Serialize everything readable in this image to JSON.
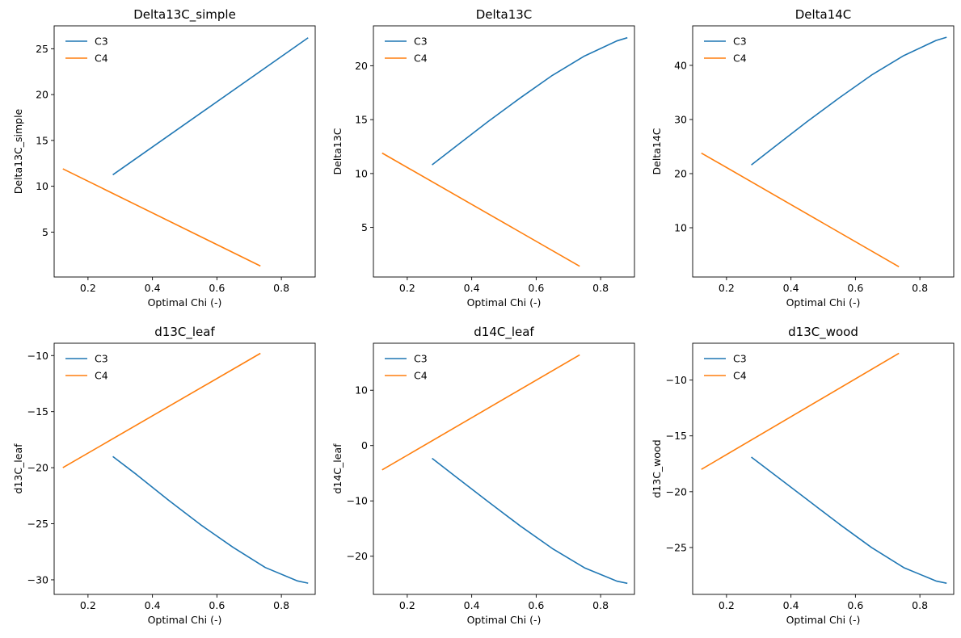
{
  "figure": {
    "legend_location": "upper-left",
    "grid": false,
    "series_colors": {
      "C3": "#1f77b4",
      "C4": "#ff7f0e"
    }
  },
  "chart_data": [
    {
      "type": "line",
      "title": "Delta13C_simple",
      "xlabel": "Optimal Chi (-)",
      "ylabel": "Delta13C_simple",
      "xlim": [
        0.095,
        0.905
      ],
      "ylim": [
        0.1,
        27.5
      ],
      "xticks": [
        0.2,
        0.4,
        0.6,
        0.8
      ],
      "xtick_labels": [
        "0.2",
        "0.4",
        "0.6",
        "0.8"
      ],
      "yticks": [
        5,
        10,
        15,
        20,
        25
      ],
      "ytick_labels": [
        "5",
        "10",
        "15",
        "20",
        "25"
      ],
      "series": [
        {
          "name": "C3",
          "color": "#1f77b4",
          "x": [
            0.277,
            0.883
          ],
          "y": [
            11.25,
            26.2
          ]
        },
        {
          "name": "C4",
          "color": "#ff7f0e",
          "x": [
            0.122,
            0.735
          ],
          "y": [
            11.9,
            1.3
          ]
        }
      ]
    },
    {
      "type": "line",
      "title": "Delta13C",
      "xlabel": "Optimal Chi (-)",
      "ylabel": "Delta13C",
      "xlim": [
        0.095,
        0.905
      ],
      "ylim": [
        0.4,
        23.7
      ],
      "xticks": [
        0.2,
        0.4,
        0.6,
        0.8
      ],
      "xtick_labels": [
        "0.2",
        "0.4",
        "0.6",
        "0.8"
      ],
      "yticks": [
        5,
        10,
        15,
        20
      ],
      "ytick_labels": [
        "5",
        "10",
        "15",
        "20"
      ],
      "series": [
        {
          "name": "C3",
          "color": "#1f77b4",
          "x": [
            0.277,
            0.35,
            0.45,
            0.55,
            0.65,
            0.75,
            0.85,
            0.883
          ],
          "y": [
            10.8,
            12.5,
            14.8,
            17.0,
            19.1,
            20.9,
            22.3,
            22.6
          ]
        },
        {
          "name": "C4",
          "color": "#ff7f0e",
          "x": [
            0.122,
            0.735
          ],
          "y": [
            11.9,
            1.4
          ]
        }
      ]
    },
    {
      "type": "line",
      "title": "Delta14C",
      "xlabel": "Optimal Chi (-)",
      "ylabel": "Delta14C",
      "xlim": [
        0.095,
        0.905
      ],
      "ylim": [
        0.9,
        47.3
      ],
      "xticks": [
        0.2,
        0.4,
        0.6,
        0.8
      ],
      "xtick_labels": [
        "0.2",
        "0.4",
        "0.6",
        "0.8"
      ],
      "yticks": [
        10,
        20,
        30,
        40
      ],
      "ytick_labels": [
        "10",
        "20",
        "30",
        "40"
      ],
      "series": [
        {
          "name": "C3",
          "color": "#1f77b4",
          "x": [
            0.277,
            0.35,
            0.45,
            0.55,
            0.65,
            0.75,
            0.85,
            0.883
          ],
          "y": [
            21.6,
            25.0,
            29.6,
            34.0,
            38.2,
            41.8,
            44.6,
            45.2
          ]
        },
        {
          "name": "C4",
          "color": "#ff7f0e",
          "x": [
            0.122,
            0.735
          ],
          "y": [
            23.8,
            2.8
          ]
        }
      ]
    },
    {
      "type": "line",
      "title": "d13C_leaf",
      "xlabel": "Optimal Chi (-)",
      "ylabel": "d13C_leaf",
      "xlim": [
        0.095,
        0.905
      ],
      "ylim": [
        -31.3,
        -8.9
      ],
      "xticks": [
        0.2,
        0.4,
        0.6,
        0.8
      ],
      "xtick_labels": [
        "0.2",
        "0.4",
        "0.6",
        "0.8"
      ],
      "yticks": [
        -30,
        -25,
        -20,
        -15,
        -10
      ],
      "ytick_labels": [
        "−30",
        "−25",
        "−20",
        "−15",
        "−10"
      ],
      "series": [
        {
          "name": "C3",
          "color": "#1f77b4",
          "x": [
            0.277,
            0.35,
            0.45,
            0.55,
            0.65,
            0.75,
            0.85,
            0.883
          ],
          "y": [
            -19.0,
            -20.6,
            -22.9,
            -25.1,
            -27.1,
            -28.9,
            -30.1,
            -30.3
          ]
        },
        {
          "name": "C4",
          "color": "#ff7f0e",
          "x": [
            0.122,
            0.735
          ],
          "y": [
            -20.0,
            -9.8
          ]
        }
      ]
    },
    {
      "type": "line",
      "title": "d14C_leaf",
      "xlabel": "Optimal Chi (-)",
      "ylabel": "d14C_leaf",
      "xlim": [
        0.095,
        0.905
      ],
      "ylim": [
        -26.9,
        18.5
      ],
      "xticks": [
        0.2,
        0.4,
        0.6,
        0.8
      ],
      "xtick_labels": [
        "0.2",
        "0.4",
        "0.6",
        "0.8"
      ],
      "yticks": [
        -20,
        -10,
        0,
        10
      ],
      "ytick_labels": [
        "−20",
        "−10",
        "0",
        "10"
      ],
      "series": [
        {
          "name": "C3",
          "color": "#1f77b4",
          "x": [
            0.277,
            0.35,
            0.45,
            0.55,
            0.65,
            0.75,
            0.85,
            0.883
          ],
          "y": [
            -2.3,
            -5.6,
            -10.1,
            -14.5,
            -18.6,
            -22.1,
            -24.5,
            -24.9
          ]
        },
        {
          "name": "C4",
          "color": "#ff7f0e",
          "x": [
            0.122,
            0.735
          ],
          "y": [
            -4.4,
            16.4
          ]
        }
      ]
    },
    {
      "type": "line",
      "title": "d13C_wood",
      "xlabel": "Optimal Chi (-)",
      "ylabel": "d13C_wood",
      "xlim": [
        0.095,
        0.905
      ],
      "ylim": [
        -29.2,
        -6.7
      ],
      "xticks": [
        0.2,
        0.4,
        0.6,
        0.8
      ],
      "xtick_labels": [
        "0.2",
        "0.4",
        "0.6",
        "0.8"
      ],
      "yticks": [
        -25,
        -20,
        -15,
        -10
      ],
      "ytick_labels": [
        "−25",
        "−20",
        "−15",
        "−10"
      ],
      "series": [
        {
          "name": "C3",
          "color": "#1f77b4",
          "x": [
            0.277,
            0.35,
            0.45,
            0.55,
            0.65,
            0.75,
            0.85,
            0.883
          ],
          "y": [
            -16.9,
            -18.5,
            -20.7,
            -22.9,
            -25.0,
            -26.8,
            -28.0,
            -28.2
          ]
        },
        {
          "name": "C4",
          "color": "#ff7f0e",
          "x": [
            0.122,
            0.735
          ],
          "y": [
            -18.0,
            -7.6
          ]
        }
      ]
    }
  ]
}
